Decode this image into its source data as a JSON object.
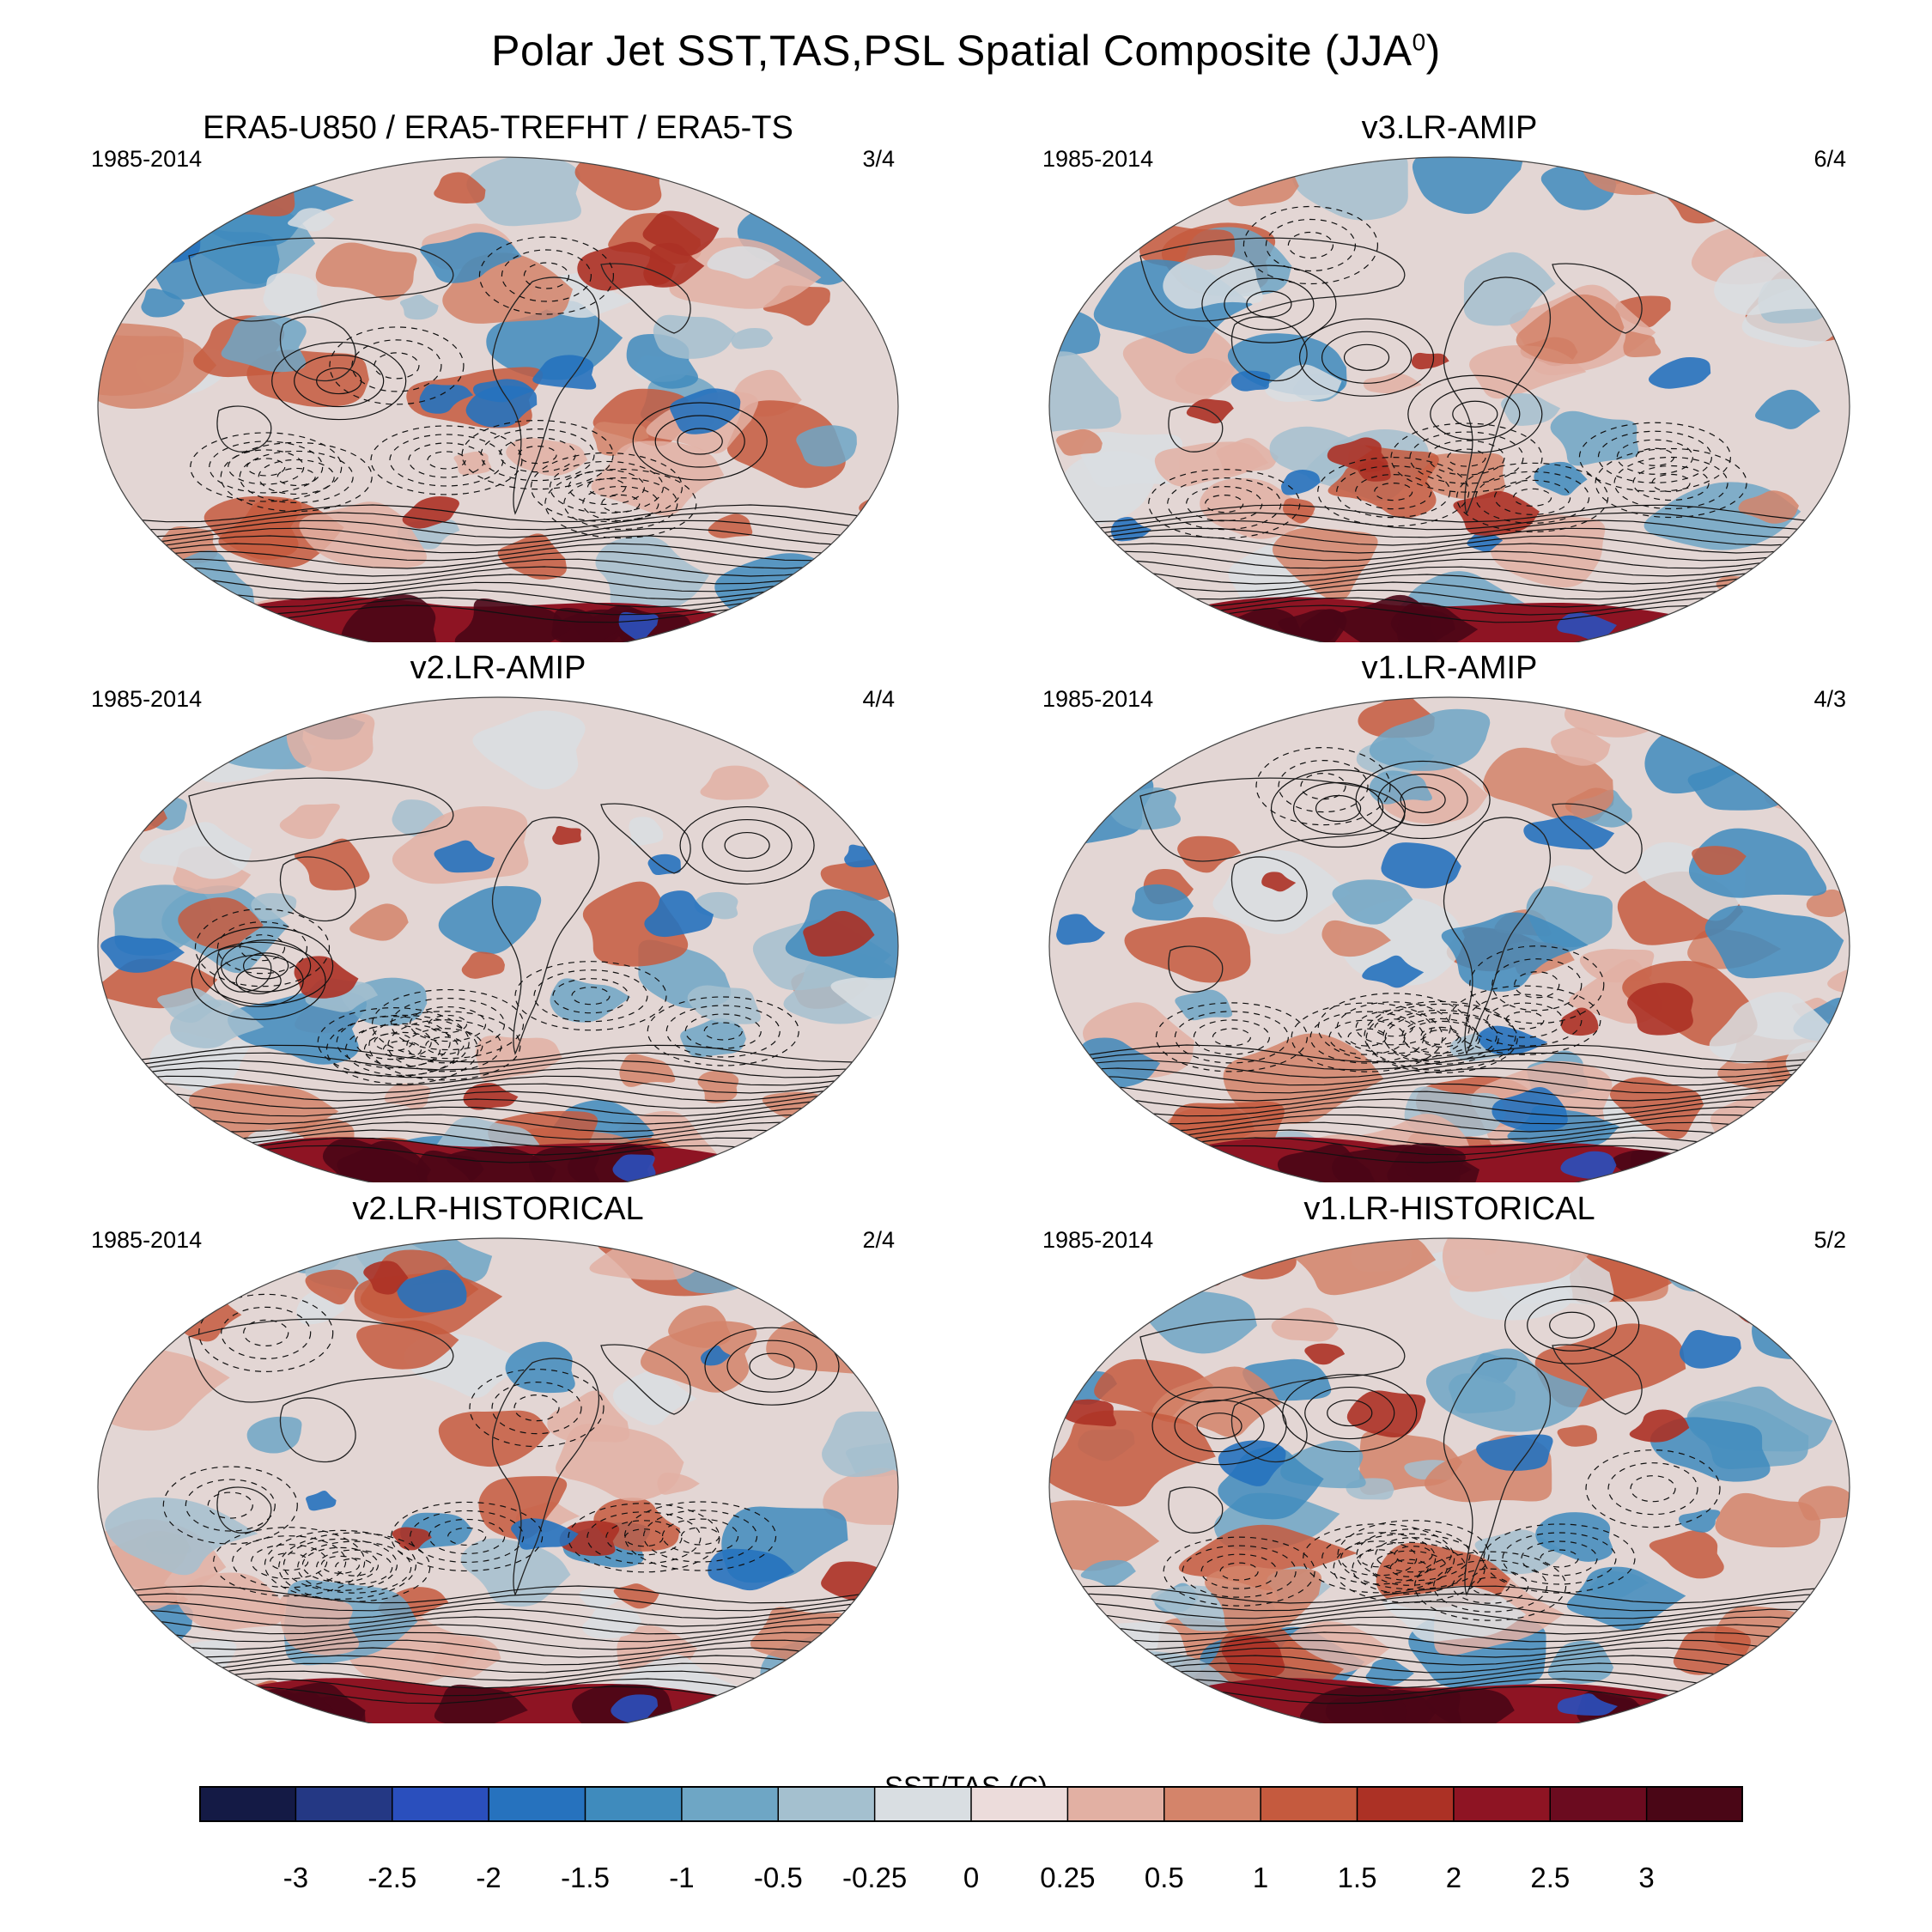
{
  "title": {
    "main": "Polar Jet SST,TAS,PSL Spatial Composite (JJA",
    "sup": "0",
    "close": ")"
  },
  "panels": [
    {
      "title": "ERA5-U850 / ERA5-TREFHT / ERA5-TS",
      "period": "1985-2014",
      "ratio": "3/4"
    },
    {
      "title": "v3.LR-AMIP",
      "period": "1985-2014",
      "ratio": "6/4"
    },
    {
      "title": "v2.LR-AMIP",
      "period": "1985-2014",
      "ratio": "4/4"
    },
    {
      "title": "v1.LR-AMIP",
      "period": "1985-2014",
      "ratio": "4/3"
    },
    {
      "title": "v2.LR-HISTORICAL",
      "period": "1985-2014",
      "ratio": "2/4"
    },
    {
      "title": "v1.LR-HISTORICAL",
      "period": "1985-2014",
      "ratio": "5/2"
    }
  ],
  "colorbar": {
    "label": "SST/TAS (C)",
    "ticks": [
      "-3",
      "-2.5",
      "-2",
      "-1.5",
      "-1",
      "-0.5",
      "-0.25",
      "0",
      "0.25",
      "0.5",
      "1",
      "1.5",
      "2",
      "2.5",
      "3"
    ],
    "colors": [
      "#141a45",
      "#243884",
      "#2a4fbd",
      "#2672be",
      "#3f8bbd",
      "#6ea6c5",
      "#a4c0cf",
      "#d9dee2",
      "#ecdcdb",
      "#e2b0a3",
      "#d4846a",
      "#c55a3e",
      "#ac3125",
      "#8e1423",
      "#6b0b1f",
      "#4a0616"
    ]
  }
}
